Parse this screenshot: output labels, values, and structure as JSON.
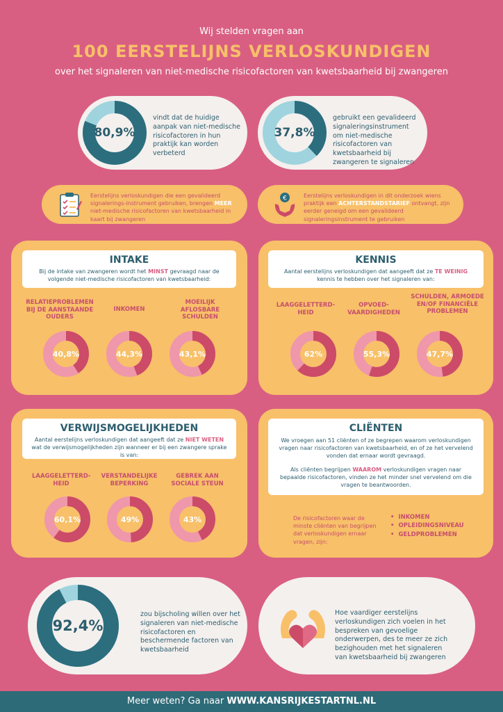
{
  "header": {
    "pre": "Wij stelden vragen aan",
    "title": "100 EERSTELIJNS VERLOSKUNDIGEN",
    "subtitle": "over het signaleren van niet-medische risicofactoren van kwetsbaarheid bij zwangeren"
  },
  "stats_top": [
    {
      "value": "80,9%",
      "fraction": 0.809,
      "text": "vindt dat de huidige aanpak van niet-medische risicofactoren in hun praktijk kan worden verbeterd"
    },
    {
      "value": "37,8%",
      "fraction": 0.378,
      "text": "gebruikt een gevalideerd signaleringsinstrument om niet-medische risicofactoren van kwetsbaarheid bij zwangeren te signaleren"
    }
  ],
  "facts": [
    {
      "before": "Eerstelijns verloskundigen die een gevalideerd signalerings-instrument gebruiken, brengen ",
      "highlight": "MEER",
      "after": " niet-medische risicofactoren van kwetsbaarheid in kaart bij zwangeren"
    },
    {
      "before": "Eerstelijns verloskundigen in dit onderzoek wiens praktijk een ",
      "highlight": "ACHTERSTANDSTARIEF",
      "after": " ontvangt, zijn eerder geneigd om een gevalideerd signaleringsinstrument te gebruiken"
    }
  ],
  "intake": {
    "title": "INTAKE",
    "desc_before": "Bij de intake van zwangeren wordt het ",
    "desc_highlight": "MINST",
    "desc_after": " gevraagd naar de volgende niet-medische risicofactoren van kwetsbaarheid:",
    "items": [
      {
        "label": "RELATIEPROBLEMEN BIJ DE AANSTAANDE OUDERS",
        "value": "40,8%",
        "fraction": 0.408
      },
      {
        "label": "INKOMEN",
        "value": "44,3%",
        "fraction": 0.443
      },
      {
        "label": "MOEILIJK AFLOSBARE SCHULDEN",
        "value": "43,1%",
        "fraction": 0.431
      }
    ]
  },
  "kennis": {
    "title": "KENNIS",
    "desc_before": "Aantal eerstelijns verloskundigen dat aangeeft dat ze ",
    "desc_highlight": "TE WEINIG",
    "desc_after": " kennis te hebben over het signaleren van:",
    "items": [
      {
        "label": "LAAGGELETTERD-HEID",
        "value": "62%",
        "fraction": 0.62
      },
      {
        "label": "OPVOED-VAARDIGHEDEN",
        "value": "55,3%",
        "fraction": 0.553
      },
      {
        "label": "SCHULDEN, ARMOEDE EN/OF FINANCIËLE PROBLEMEN",
        "value": "47,7%",
        "fraction": 0.477
      }
    ]
  },
  "verwijs": {
    "title": "VERWIJSMOGELIJKHEDEN",
    "desc_before": "Aantal eerstelijns verloskundigen dat aangeeft dat ze ",
    "desc_highlight": "NIET WETEN",
    "desc_after": " wat de verwijsmogelijkheden zijn wanneer er bij een zwangere sprake is van:",
    "items": [
      {
        "label": "LAAGGELETTERD-HEID",
        "value": "60,1%",
        "fraction": 0.601
      },
      {
        "label": "VERSTANDELIJKE BEPERKING",
        "value": "49%",
        "fraction": 0.49
      },
      {
        "label": "GEBREK AAN SOCIALE STEUN",
        "value": "43%",
        "fraction": 0.43
      }
    ]
  },
  "clienten": {
    "title": "CLIËNTEN",
    "p1": "We vroegen aan 51 cliënten of ze begrepen waarom verloskundigen vragen naar risicofactoren van kwetsbaarheid, en of ze het vervelend vonden dat ernaar wordt gevraagd.",
    "p2_before": "Als cliënten begrijpen ",
    "p2_highlight": "WAAROM",
    "p2_after": " verloskundigen vragen naar bepaalde risicofactoren, vinden ze het minder snel vervelend om die vragen te beantwoorden.",
    "list_intro": "De risicofactoren waar de minste cliënten van begrijpen dat verloskundigen ernaar vragen, zijn:",
    "list": [
      "INKOMEN",
      "OPLEIDINGSNIVEAU",
      "GELDPROBLEMEN"
    ]
  },
  "bottom": {
    "stat_value": "92,4%",
    "stat_fraction": 0.924,
    "stat_text": "zou bijscholing willen over het signaleren van niet-medische risicofactoren en beschermende factoren van kwetsbaarheid",
    "right_text": "Hoe vaardiger eerstelijns verloskundigen zich voelen in het bespreken van gevoelige onderwerpen, des te meer ze zich bezighouden met het signaleren van kwetsbaarheid bij zwangeren"
  },
  "footer": {
    "prefix": "Meer weten? Ga naar ",
    "url": "WWW.KANSRIJKESTARTNL.NL"
  },
  "colors": {
    "background": "#d95f82",
    "accent_yellow": "#f8c069",
    "teal_dark": "#2c6e7e",
    "teal_light": "#9fd4de",
    "pink_dark": "#cc4b68",
    "pink_light": "#ef97ab",
    "footer": "#2e6b78"
  }
}
